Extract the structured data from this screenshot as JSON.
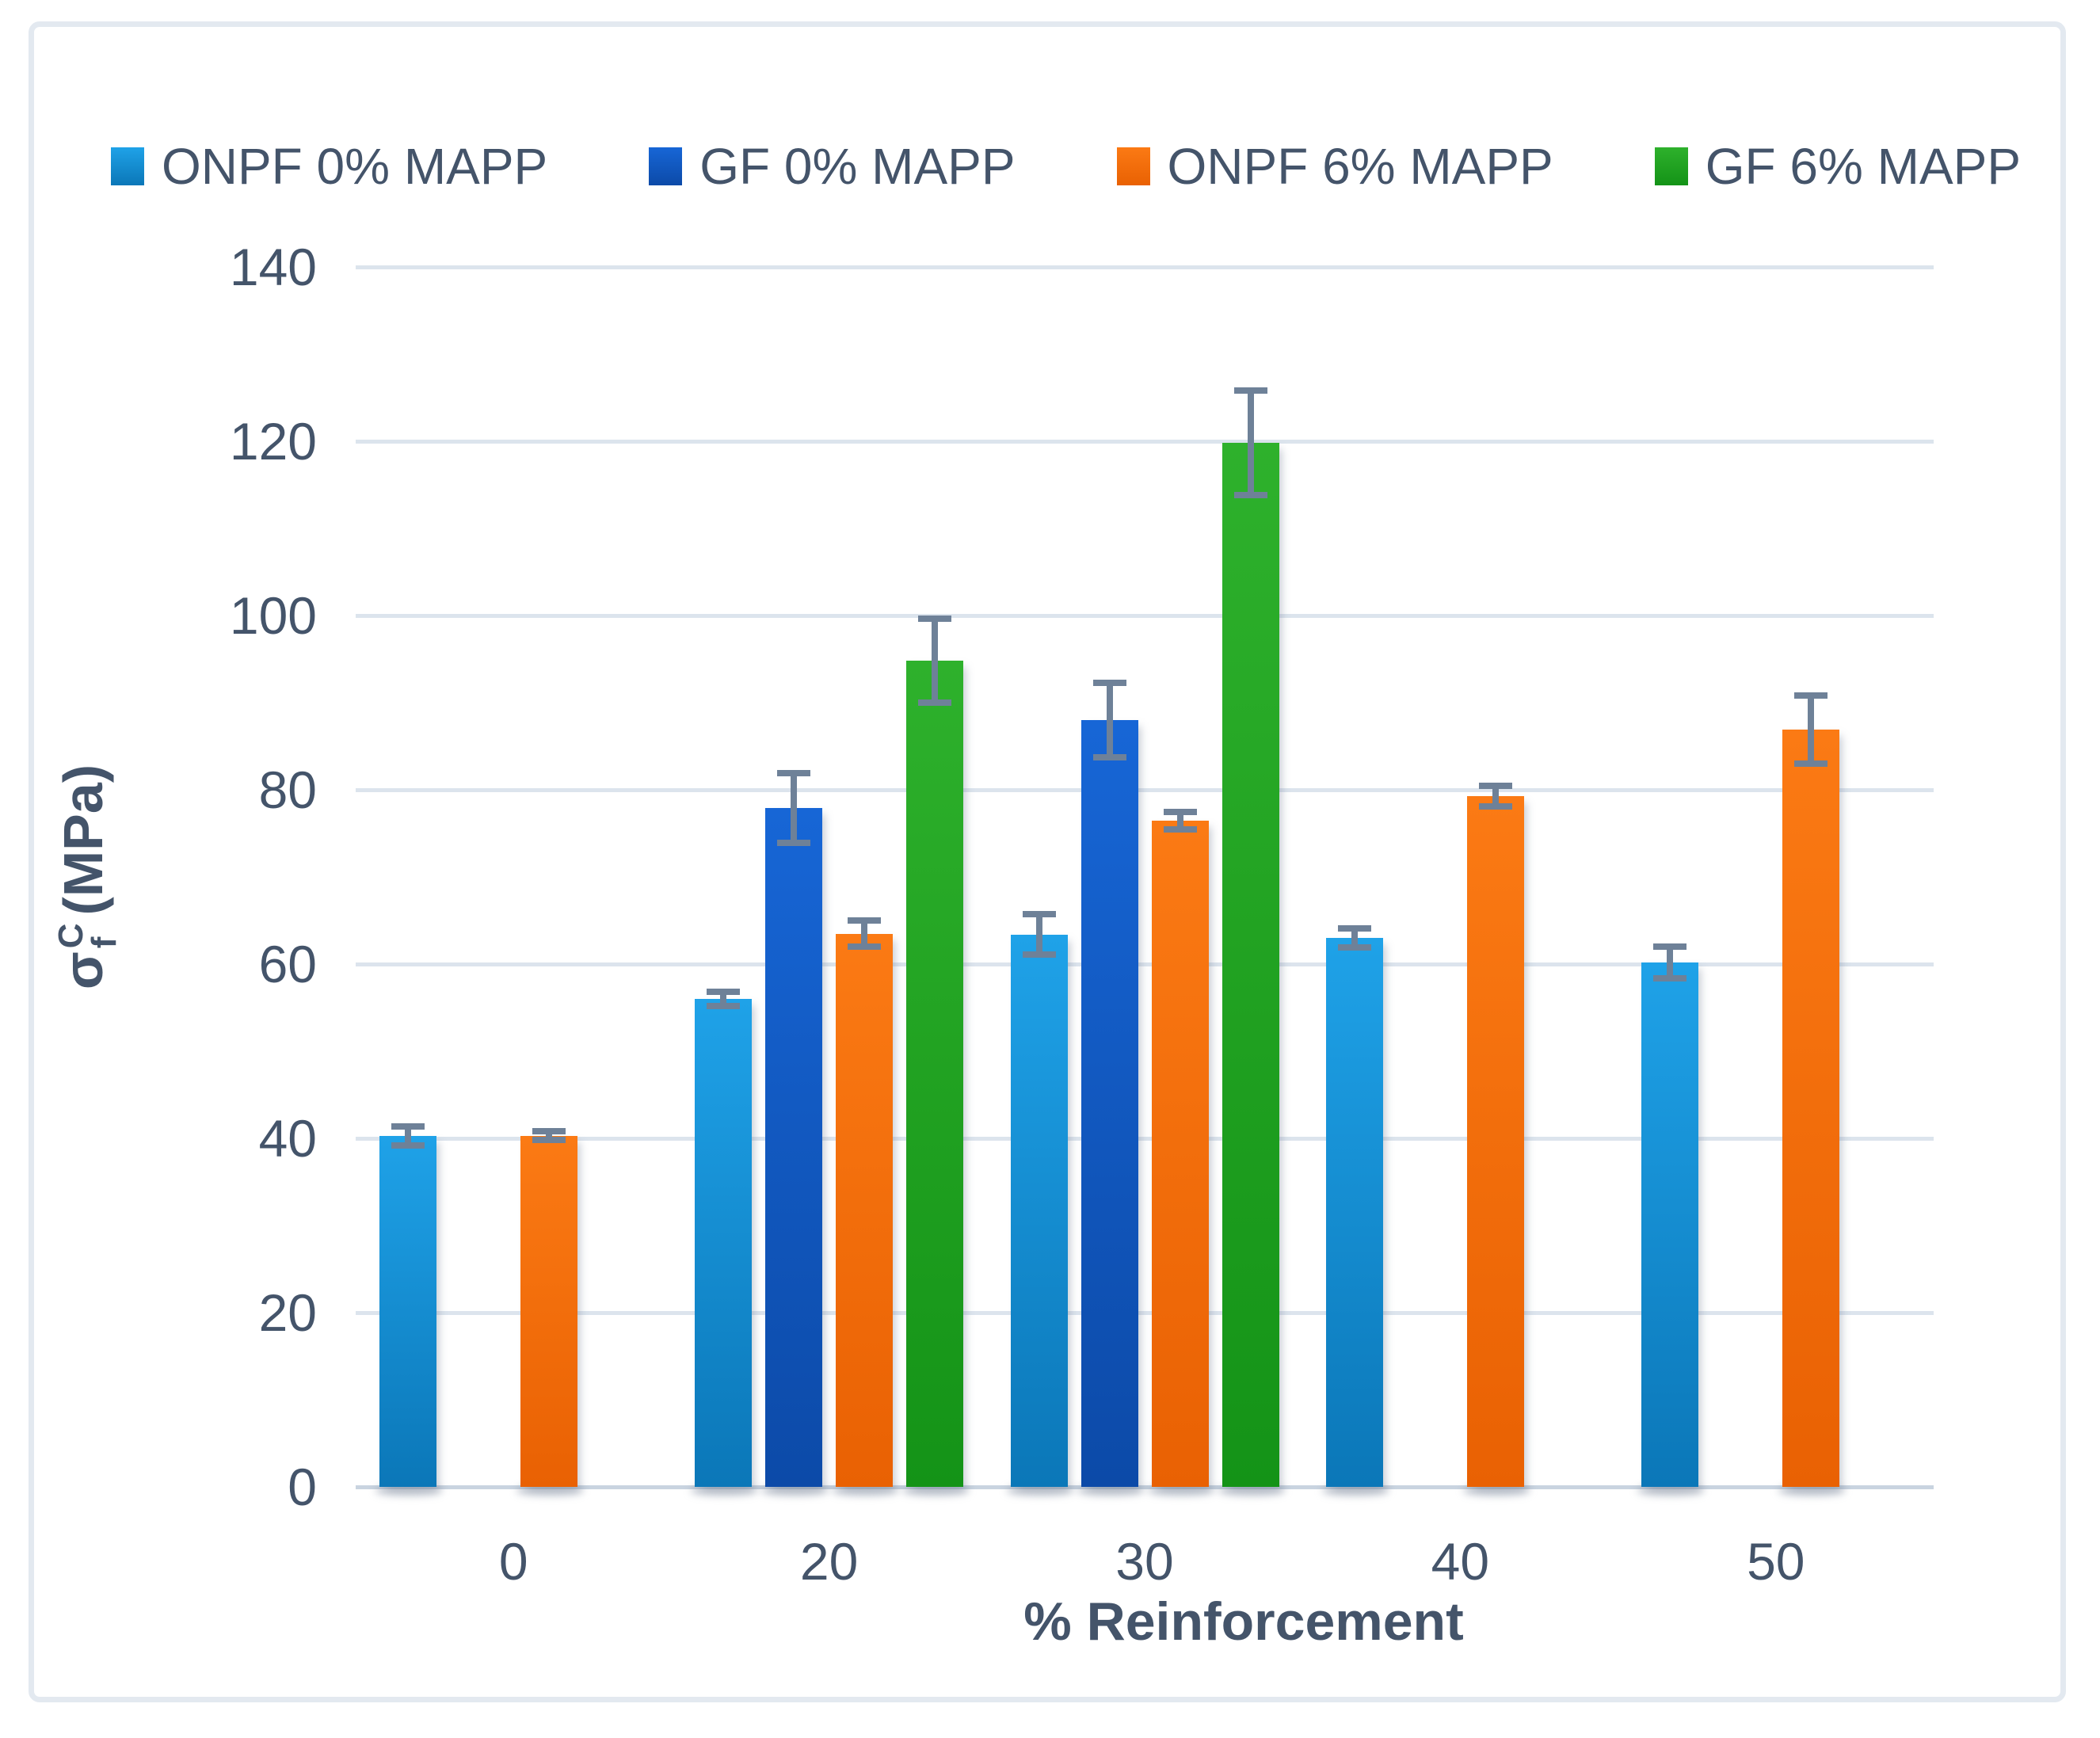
{
  "frame_border_color": "#E3E9F0",
  "text_color": "#44546A",
  "error_bar_color": "#6E8198",
  "gridline_color": "#DCE4ED",
  "axis_line_color": "#C9D4E0",
  "legend": {
    "items": [
      {
        "label": "ONPF 0% MAPP"
      },
      {
        "label": "GF 0% MAPP"
      },
      {
        "label": "ONPF 6% MAPP"
      },
      {
        "label": "GF 6% MAPP"
      }
    ]
  },
  "y_axis": {
    "title_symbol": "σ",
    "title_sup": "C",
    "title_sub": "f",
    "title_unit": "(MPa)",
    "ticks": [
      0,
      20,
      40,
      60,
      80,
      100,
      120,
      140
    ]
  },
  "x_axis": {
    "title": "% Reinforcement",
    "categories": [
      "0",
      "20",
      "30",
      "40",
      "50"
    ]
  },
  "chart_data": {
    "type": "bar",
    "title": "",
    "xlabel": "% Reinforcement",
    "ylabel": "σf^C (MPa)",
    "ylim": [
      0,
      140
    ],
    "ytick_step": 20,
    "grid": true,
    "legend_position": "top",
    "categories": [
      "0",
      "20",
      "30",
      "40",
      "50"
    ],
    "series": [
      {
        "name": "ONPF 0% MAPP",
        "values": [
          40.3,
          56.0,
          63.4,
          63.0,
          60.2
        ],
        "errors": [
          1.1,
          0.8,
          2.3,
          1.1,
          1.8
        ],
        "fill_top": "#1FA2E8",
        "fill_bottom": "#0B77B8"
      },
      {
        "name": "GF 0% MAPP",
        "values": [
          null,
          77.9,
          88.0,
          null,
          null
        ],
        "errors": [
          null,
          4.0,
          4.3,
          null,
          null
        ],
        "fill_top": "#1766D6",
        "fill_bottom": "#0C4AA8"
      },
      {
        "name": "ONPF 6% MAPP",
        "values": [
          40.3,
          63.5,
          76.5,
          79.3,
          86.9
        ],
        "errors": [
          0.5,
          1.5,
          1.0,
          1.2,
          3.9
        ],
        "fill_top": "#FB7A14",
        "fill_bottom": "#E96103"
      },
      {
        "name": "GF 6% MAPP",
        "values": [
          null,
          94.8,
          119.8,
          null,
          null
        ],
        "errors": [
          null,
          4.8,
          6.0,
          null,
          null
        ],
        "fill_top": "#2EB12C",
        "fill_bottom": "#149317"
      }
    ]
  }
}
